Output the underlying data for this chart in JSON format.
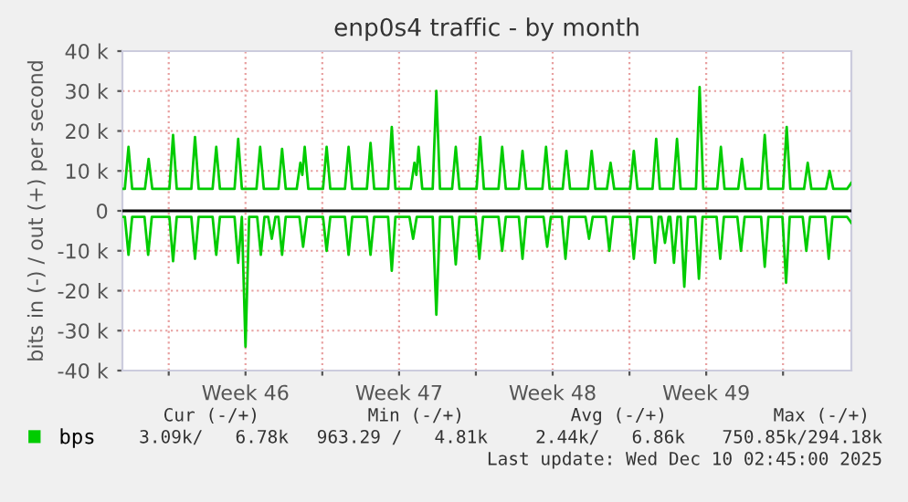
{
  "chart_data": {
    "type": "line",
    "title": "enp0s4 traffic - by month",
    "ylabel": "bits in (-) / out (+) per second",
    "xlim": [
      "2025-11-06T21:20",
      "2025-12-10T02:45"
    ],
    "xticks": [
      {
        "value": "2025-11-09",
        "label": null
      },
      {
        "value": "2025-11-12T12:00",
        "label": "Week 46"
      },
      {
        "value": "2025-11-16",
        "label": null
      },
      {
        "value": "2025-11-19T12:00",
        "label": "Week 47"
      },
      {
        "value": "2025-11-23",
        "label": null
      },
      {
        "value": "2025-11-26T12:00",
        "label": "Week 48"
      },
      {
        "value": "2025-11-30",
        "label": null
      },
      {
        "value": "2025-12-03T12:00",
        "label": "Week 49"
      },
      {
        "value": "2025-12-07",
        "label": null
      }
    ],
    "ylim": [
      -40000,
      40000
    ],
    "yticks": [
      {
        "value": -40000,
        "label": "-40 k"
      },
      {
        "value": -30000,
        "label": "-30 k"
      },
      {
        "value": -20000,
        "label": "-20 k"
      },
      {
        "value": -10000,
        "label": "-10 k"
      },
      {
        "value": 0,
        "label": "0"
      },
      {
        "value": 10000,
        "label": "10 k"
      },
      {
        "value": 20000,
        "label": "20 k"
      },
      {
        "value": 30000,
        "label": "30 k"
      },
      {
        "value": 40000,
        "label": "40 k"
      }
    ],
    "grid": true,
    "legend": "bottom left",
    "marker": "none",
    "line_style": "solid",
    "ref_lines": [
      {
        "axis": "y",
        "value": 0,
        "color": "#000000"
      }
    ],
    "series": [
      {
        "name": "bps",
        "color": "#00cc00",
        "x": [
          "2025-11-06T21:20",
          "2025-11-07T00:00",
          "2025-11-07T04:00",
          "2025-11-07T08:00",
          "2025-11-07T22:00",
          "2025-11-08T02:00",
          "2025-11-08T06:00",
          "2025-11-09T00:45",
          "2025-11-09T04:45",
          "2025-11-09T08:45",
          "2025-11-10T00:45",
          "2025-11-10T04:45",
          "2025-11-10T08:45",
          "2025-11-11T00:00",
          "2025-11-11T04:00",
          "2025-11-11T08:00",
          "2025-11-12T00:00",
          "2025-11-12T04:00",
          "2025-11-12T08:00",
          "2025-11-13T00:00",
          "2025-11-13T04:00",
          "2025-11-13T08:00",
          "2025-11-14T00:00",
          "2025-11-14T04:00",
          "2025-11-14T08:00",
          "2025-11-14T20:00",
          "2025-11-15T00:00",
          "2025-11-15T02:10",
          "2025-11-15T04:45",
          "2025-11-15T08:45",
          "2025-11-16T00:45",
          "2025-11-16T04:45",
          "2025-11-16T08:45",
          "2025-11-17T00:45",
          "2025-11-17T04:45",
          "2025-11-17T08:45",
          "2025-11-18T00:45",
          "2025-11-18T04:45",
          "2025-11-18T08:45",
          "2025-11-19T00:00",
          "2025-11-19T04:00",
          "2025-11-19T08:00",
          "2025-11-20T00:45",
          "2025-11-20T04:45",
          "2025-11-20T06:55",
          "2025-11-20T09:20",
          "2025-11-20T13:20",
          "2025-11-21T00:45",
          "2025-11-21T04:45",
          "2025-11-21T08:45",
          "2025-11-21T22:00",
          "2025-11-22T02:00",
          "2025-11-22T06:00",
          "2025-11-23T00:45",
          "2025-11-23T04:45",
          "2025-11-23T08:45",
          "2025-11-24T00:45",
          "2025-11-24T04:45",
          "2025-11-24T08:45",
          "2025-11-24T23:00",
          "2025-11-25T03:00",
          "2025-11-25T07:00",
          "2025-11-26T00:45",
          "2025-11-26T04:45",
          "2025-11-26T08:45",
          "2025-11-26T23:00",
          "2025-11-27T03:00",
          "2025-11-27T07:00",
          "2025-11-28T02:40",
          "2025-11-28T06:40",
          "2025-11-28T10:40",
          "2025-11-28T23:20",
          "2025-11-29T03:20",
          "2025-11-29T07:20",
          "2025-11-30T00:45",
          "2025-11-30T04:45",
          "2025-11-30T08:45",
          "2025-12-01T01:15",
          "2025-12-01T05:15",
          "2025-12-01T09:15",
          "2025-12-02T00:00",
          "2025-12-02T04:00",
          "2025-12-02T08:00",
          "2025-12-03T00:45",
          "2025-12-03T04:45",
          "2025-12-03T08:45",
          "2025-12-04T00:00",
          "2025-12-04T04:00",
          "2025-12-04T08:00",
          "2025-12-04T23:00",
          "2025-12-05T03:00",
          "2025-12-05T07:00",
          "2025-12-06T00:00",
          "2025-12-06T04:00",
          "2025-12-06T08:00",
          "2025-12-07T00:00",
          "2025-12-07T04:00",
          "2025-12-07T08:00",
          "2025-12-07T23:00",
          "2025-12-08T03:00",
          "2025-12-08T07:00",
          "2025-12-08T23:00",
          "2025-12-09T03:00",
          "2025-12-09T07:00",
          "2025-12-09T22:00",
          "2025-12-10T02:40"
        ],
        "values": [
          5500,
          5500,
          16000,
          5500,
          5500,
          13000,
          5500,
          5500,
          19000,
          5500,
          5500,
          18500,
          5500,
          5500,
          16000,
          5500,
          5500,
          18000,
          5500,
          5500,
          16000,
          5500,
          5500,
          15500,
          5500,
          5500,
          12000,
          9000,
          16000,
          5500,
          5500,
          16000,
          5500,
          5500,
          16000,
          5500,
          5500,
          17000,
          5500,
          5500,
          21000,
          5500,
          5500,
          12000,
          9000,
          16000,
          5500,
          5500,
          30000,
          5500,
          5500,
          16000,
          5500,
          5500,
          18500,
          5500,
          5500,
          16000,
          5500,
          5500,
          15000,
          5500,
          5500,
          16000,
          5500,
          5500,
          15000,
          5500,
          5500,
          15000,
          5500,
          5500,
          12000,
          5500,
          5500,
          15000,
          5500,
          5500,
          18000,
          5500,
          5500,
          18000,
          5500,
          5500,
          31000,
          5500,
          5500,
          16000,
          5500,
          5500,
          13000,
          5500,
          5500,
          19000,
          5500,
          5500,
          21000,
          5500,
          5500,
          12000,
          5500,
          5500,
          10000,
          5500,
          5500,
          7000
        ]
      },
      {
        "color": "#00cc00",
        "x": [
          "2025-11-06T21:20",
          "2025-11-07T00:00",
          "2025-11-07T04:00",
          "2025-11-07T08:00",
          "2025-11-07T21:30",
          "2025-11-08T01:30",
          "2025-11-08T05:30",
          "2025-11-09T00:45",
          "2025-11-09T04:45",
          "2025-11-09T08:45",
          "2025-11-10T00:45",
          "2025-11-10T04:45",
          "2025-11-10T08:45",
          "2025-11-11T00:00",
          "2025-11-11T04:00",
          "2025-11-11T08:00",
          "2025-11-12T00:00",
          "2025-11-12T04:00",
          "2025-11-12T08:00",
          "2025-11-12T12:00",
          "2025-11-12T16:00",
          "2025-11-13T00:45",
          "2025-11-13T04:45",
          "2025-11-13T08:45",
          "2025-11-13T12:45",
          "2025-11-13T16:45",
          "2025-11-13T20:45",
          "2025-11-14T00:00",
          "2025-11-14T04:00",
          "2025-11-14T08:00",
          "2025-11-14T23:00",
          "2025-11-15T03:00",
          "2025-11-15T07:00",
          "2025-11-16T00:45",
          "2025-11-16T04:45",
          "2025-11-16T08:45",
          "2025-11-17T00:45",
          "2025-11-17T04:45",
          "2025-11-17T08:45",
          "2025-11-18T00:45",
          "2025-11-18T04:45",
          "2025-11-18T08:45",
          "2025-11-19T00:00",
          "2025-11-19T04:00",
          "2025-11-19T08:00",
          "2025-11-19T23:20",
          "2025-11-20T03:20",
          "2025-11-20T07:20",
          "2025-11-21T00:45",
          "2025-11-21T04:45",
          "2025-11-21T08:45",
          "2025-11-21T22:00",
          "2025-11-22T02:00",
          "2025-11-22T06:00",
          "2025-11-22T23:50",
          "2025-11-23T03:50",
          "2025-11-23T07:50",
          "2025-11-24T00:45",
          "2025-11-24T04:45",
          "2025-11-24T08:45",
          "2025-11-24T23:00",
          "2025-11-25T03:00",
          "2025-11-25T07:00",
          "2025-11-26T02:00",
          "2025-11-26T06:00",
          "2025-11-26T10:00",
          "2025-11-26T22:00",
          "2025-11-27T02:00",
          "2025-11-27T06:00",
          "2025-11-27T23:50",
          "2025-11-28T03:50",
          "2025-11-28T07:50",
          "2025-11-28T22:00",
          "2025-11-29T02:00",
          "2025-11-29T06:00",
          "2025-11-30T00:45",
          "2025-11-30T04:45",
          "2025-11-30T08:45",
          "2025-12-01T00:00",
          "2025-12-01T04:00",
          "2025-12-01T08:00",
          "2025-12-01T10:50",
          "2025-12-01T14:50",
          "2025-12-01T18:50",
          "2025-12-01T20:40",
          "2025-12-02T00:40",
          "2025-12-02T04:40",
          "2025-12-02T08:00",
          "2025-12-02T12:00",
          "2025-12-02T16:00",
          "2025-12-03T00:00",
          "2025-12-03T04:00",
          "2025-12-03T08:00",
          "2025-12-03T23:20",
          "2025-12-04T03:20",
          "2025-12-04T07:20",
          "2025-12-04T22:00",
          "2025-12-05T02:00",
          "2025-12-05T06:00",
          "2025-12-06T00:00",
          "2025-12-06T04:00",
          "2025-12-06T08:00",
          "2025-12-06T23:20",
          "2025-12-07T03:20",
          "2025-12-07T07:20",
          "2025-12-07T21:30",
          "2025-12-08T01:30",
          "2025-12-08T05:30",
          "2025-12-08T22:00",
          "2025-12-09T02:00",
          "2025-12-09T06:00",
          "2025-12-09T22:00",
          "2025-12-10T02:40"
        ],
        "values": [
          -1500,
          -1500,
          -11000,
          -1500,
          -1500,
          -11000,
          -1500,
          -1500,
          -12600,
          -1500,
          -1500,
          -12000,
          -1500,
          -1500,
          -11000,
          -1500,
          -1500,
          -13000,
          -1500,
          -34000,
          -1500,
          -1500,
          -11000,
          -1500,
          -1500,
          -7000,
          -1500,
          -1500,
          -11000,
          -1500,
          -1500,
          -9000,
          -1500,
          -1500,
          -10000,
          -1500,
          -1500,
          -11000,
          -1500,
          -1500,
          -11000,
          -1500,
          -1500,
          -15000,
          -1500,
          -1500,
          -7000,
          -1500,
          -1500,
          -26000,
          -1500,
          -1500,
          -13400,
          -1500,
          -1500,
          -12000,
          -1500,
          -1500,
          -10000,
          -1500,
          -1500,
          -12000,
          -1500,
          -1500,
          -9000,
          -1500,
          -1500,
          -12000,
          -1500,
          -1500,
          -7000,
          -1500,
          -1500,
          -10000,
          -1500,
          -1500,
          -12000,
          -1500,
          -1500,
          -13000,
          -1500,
          -1500,
          -8000,
          -1500,
          -1500,
          -13000,
          -1500,
          -1500,
          -19000,
          -1500,
          -1500,
          -17000,
          -1500,
          -1500,
          -12000,
          -1500,
          -1500,
          -10000,
          -1500,
          -1500,
          -14000,
          -1500,
          -1500,
          -18000,
          -1500,
          -1500,
          -10000,
          -1500,
          -1500,
          -12000,
          -1500,
          -1500,
          -3000
        ]
      }
    ],
    "annotations": [
      "Cur (-/+)",
      "Min (-/+)",
      "Avg (-/+)",
      "Max (-/+)",
      "3.09k/   6.78k",
      "963.29 /   4.81k",
      "2.44k/   6.86k",
      "750.85k/294.18k",
      "Last update: Wed Dec 10 02:45:00 2025"
    ]
  }
}
